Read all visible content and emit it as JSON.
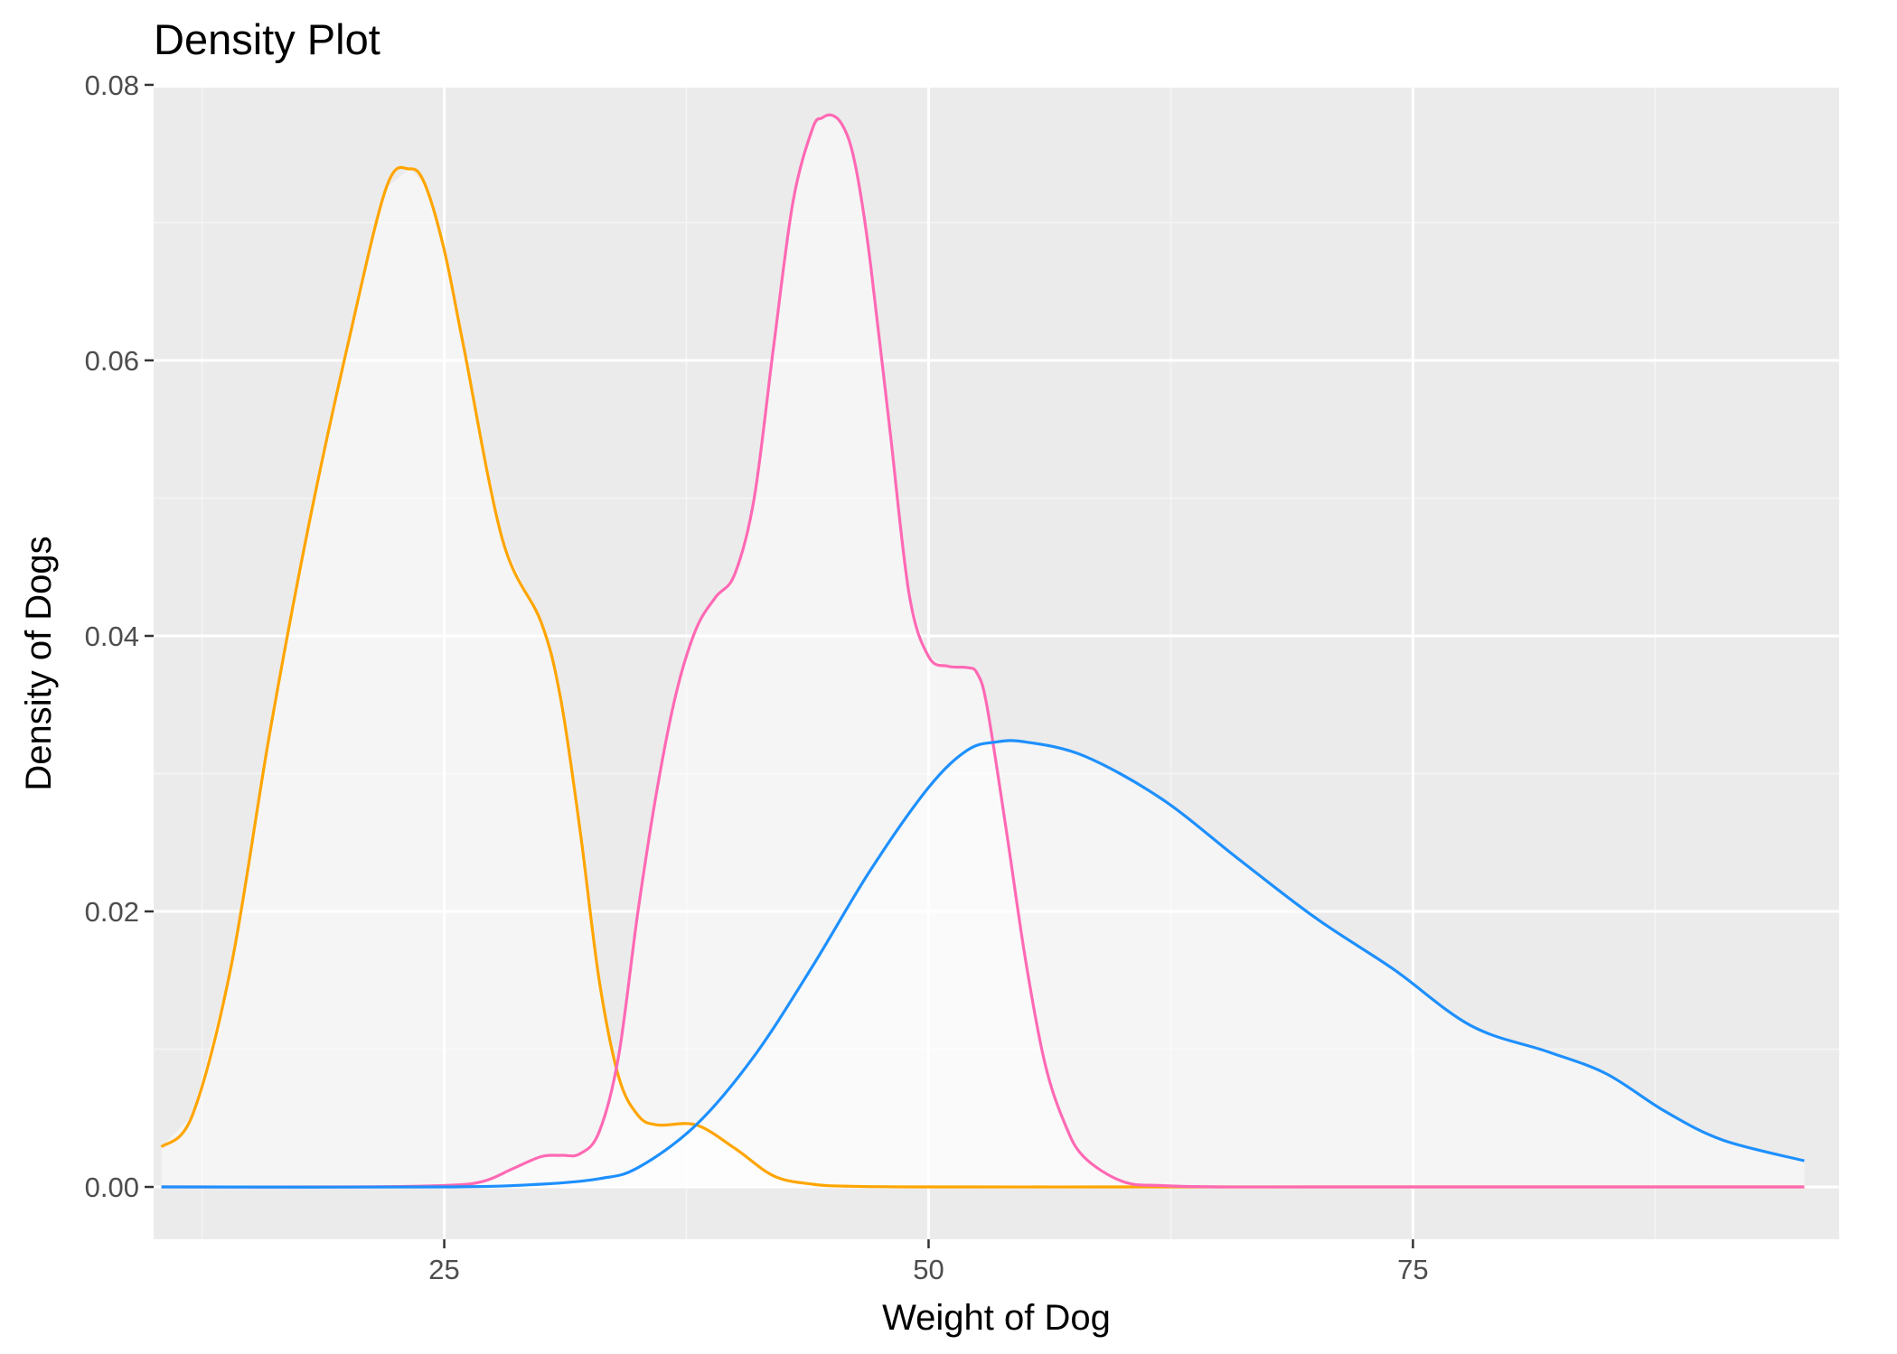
{
  "chart_data": {
    "type": "area",
    "title": "Density Plot",
    "xlabel": "Weight of Dog",
    "ylabel": "Density of Dogs",
    "xlim": [
      10,
      97
    ],
    "ylim": [
      -0.0038,
      0.0798
    ],
    "x_ticks": [
      25,
      50,
      75
    ],
    "x_tick_labels": [
      "25",
      "50",
      "75"
    ],
    "y_ticks": [
      0,
      0.02,
      0.04,
      0.06,
      0.08
    ],
    "y_tick_labels": [
      "0.00",
      "0.02",
      "0.04",
      "0.06",
      "0.08"
    ],
    "grid": true,
    "legend": "none",
    "colors": {
      "panel": "#ebebeb",
      "grid_major": "#ffffff",
      "grid_minor": "#f5f5f5",
      "tick": "#333333"
    },
    "series": [
      {
        "color": "#FFA500",
        "x": [
          10.4,
          12,
          14,
          16,
          18,
          20,
          22,
          23.2,
          24,
          25,
          26,
          28,
          30,
          31,
          32,
          33,
          34,
          35,
          36,
          38,
          40,
          42,
          44,
          46,
          50,
          60,
          70,
          80,
          90,
          95.2
        ],
        "y": [
          0.0029,
          0.0052,
          0.016,
          0.033,
          0.048,
          0.061,
          0.0725,
          0.0739,
          0.0728,
          0.068,
          0.061,
          0.047,
          0.041,
          0.0355,
          0.026,
          0.015,
          0.008,
          0.0052,
          0.0045,
          0.0045,
          0.0028,
          0.0008,
          0.0002,
          5e-05,
          0,
          0,
          0,
          0,
          0,
          0
        ]
      },
      {
        "color": "#FF69B4",
        "x": [
          10.4,
          20,
          25,
          27,
          28.5,
          30,
          31,
          32,
          33,
          34,
          35,
          36,
          37,
          38,
          39,
          40,
          41,
          42,
          43,
          44,
          44.5,
          45,
          45.5,
          46,
          46.5,
          47,
          48,
          49,
          50,
          51,
          52,
          52.5,
          53,
          54,
          55,
          56,
          57,
          58,
          60,
          62,
          65,
          70,
          80,
          90,
          95.2
        ],
        "y": [
          0,
          0,
          0.0001,
          0.0004,
          0.0013,
          0.0022,
          0.0023,
          0.0024,
          0.004,
          0.0095,
          0.02,
          0.029,
          0.036,
          0.0405,
          0.0428,
          0.0445,
          0.05,
          0.061,
          0.0715,
          0.0768,
          0.0776,
          0.0778,
          0.0772,
          0.0755,
          0.072,
          0.067,
          0.055,
          0.043,
          0.0385,
          0.0378,
          0.0377,
          0.0373,
          0.035,
          0.026,
          0.0165,
          0.009,
          0.0047,
          0.0022,
          0.0004,
          0.0001,
          0,
          0,
          0,
          0,
          0
        ]
      },
      {
        "color": "#1E90FF",
        "x": [
          10.4,
          25,
          30,
          33,
          35,
          38,
          41,
          44,
          47,
          50,
          52,
          53.5,
          55,
          58,
          62,
          66,
          70,
          74,
          78,
          82,
          85,
          88,
          91,
          95.2
        ],
        "y": [
          0,
          0,
          0.0002,
          0.0006,
          0.0014,
          0.0045,
          0.0095,
          0.016,
          0.023,
          0.029,
          0.0317,
          0.0323,
          0.0323,
          0.0313,
          0.0282,
          0.0238,
          0.0195,
          0.0158,
          0.0117,
          0.0098,
          0.0082,
          0.0055,
          0.0034,
          0.0019
        ]
      }
    ]
  }
}
